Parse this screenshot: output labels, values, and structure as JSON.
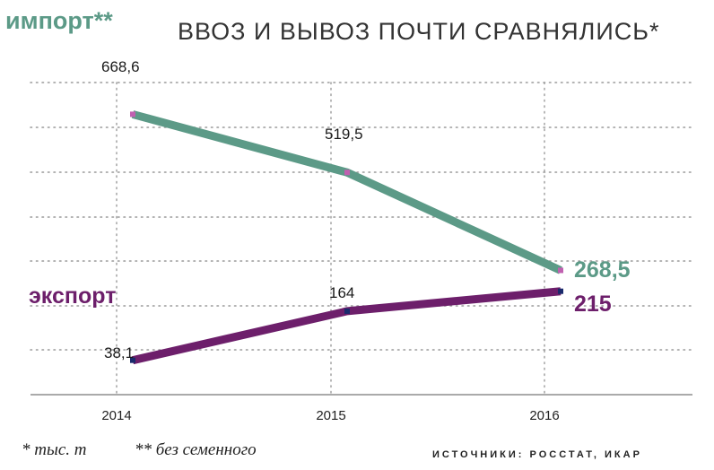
{
  "header": {
    "series_title": "импорт**",
    "title": "ВВОЗ И ВЫВОЗ ПОЧТИ СРАВНЯЛИСЬ*"
  },
  "footer": {
    "footnote_1": "* тыс. т",
    "footnote_2": "** без семенного",
    "sources": "ИСТОЧНИКИ: РОССТАТ, ИКАР"
  },
  "colors": {
    "import": "#5c9a87",
    "export": "#6d1f6b",
    "import_marker": "#c060b0",
    "export_marker": "#1a2a6c",
    "grid": "#9a9a9a",
    "text": "#333333"
  },
  "chart_data": {
    "type": "line",
    "categories": [
      "2014",
      "2015",
      "2016"
    ],
    "x": [
      2014,
      2015,
      2016
    ],
    "ylim": [
      -50,
      750
    ],
    "grid": true,
    "title": "ВВОЗ И ВЫВОЗ ПОЧТИ СРАВНЯЛИСЬ*",
    "xlabel": "",
    "ylabel": "",
    "series": [
      {
        "name": "импорт**",
        "values": [
          668.6,
          519.5,
          268.5
        ],
        "labels": [
          "668,6",
          "519,5",
          "268,5"
        ]
      },
      {
        "name": "экспорт",
        "values": [
          38.1,
          164,
          215
        ],
        "labels": [
          "38,1",
          "164",
          "215"
        ]
      }
    ]
  }
}
